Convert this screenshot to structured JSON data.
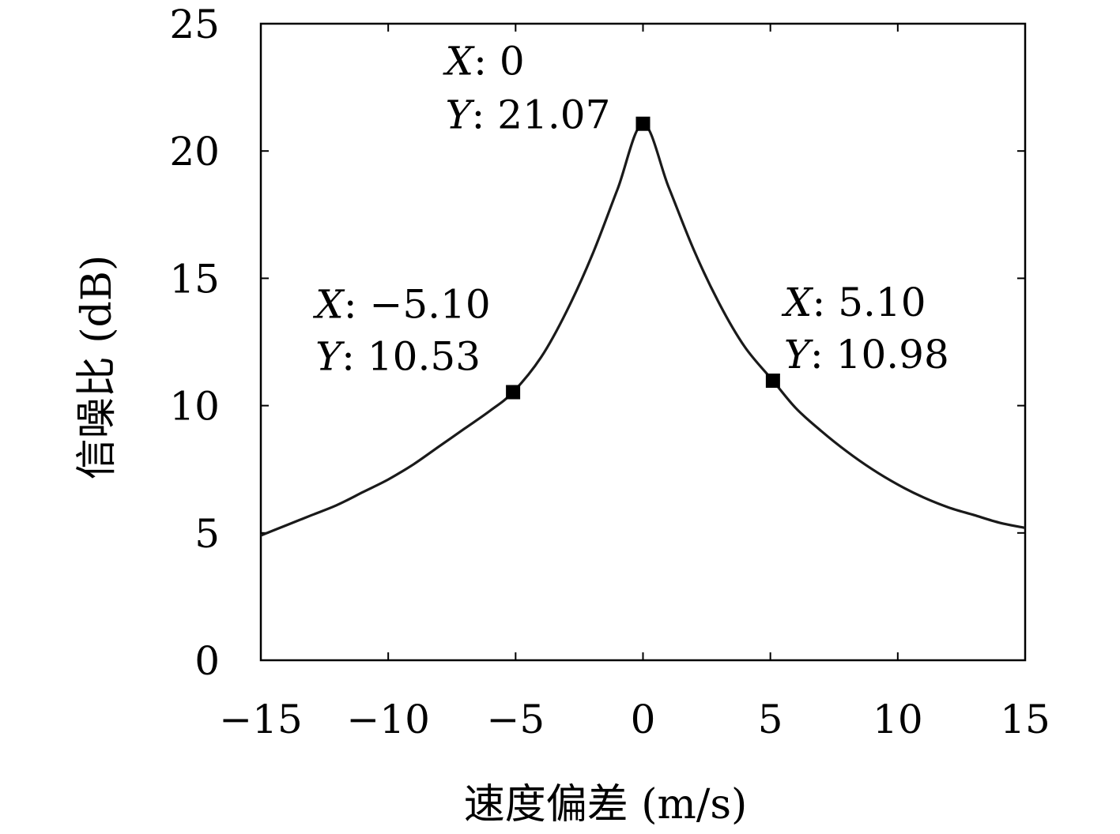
{
  "chart_data": {
    "type": "line",
    "title": "",
    "xlabel": "速度偏差 (m/s)",
    "ylabel": "信噪比 (dB)",
    "xlim": [
      -15,
      15
    ],
    "ylim": [
      0,
      25
    ],
    "xticks": [
      -15,
      -10,
      -5,
      0,
      5,
      10,
      15
    ],
    "yticks": [
      0,
      5,
      10,
      15,
      20,
      25
    ],
    "xtick_labels": [
      "−15",
      "−10",
      "−5",
      "0",
      "5",
      "10",
      "15"
    ],
    "ytick_labels": [
      "0",
      "5",
      "10",
      "15",
      "20",
      "25"
    ],
    "grid": false,
    "series": [
      {
        "color": "#1a1a1a",
        "x": [
          -15,
          -14,
          -13,
          -12,
          -11,
          -10,
          -9,
          -8,
          -7,
          -6,
          -5.1,
          -4,
          -3,
          -2,
          -1,
          0,
          1,
          2,
          3,
          4,
          5.1,
          6,
          7,
          8,
          9,
          10,
          11,
          12,
          13,
          14,
          15
        ],
        "y": [
          4.9,
          5.3,
          5.7,
          6.1,
          6.6,
          7.1,
          7.7,
          8.4,
          9.1,
          9.8,
          10.53,
          11.9,
          13.7,
          15.9,
          18.5,
          21.07,
          18.6,
          16.1,
          14.0,
          12.3,
          10.98,
          9.9,
          9.0,
          8.2,
          7.5,
          6.9,
          6.4,
          6.0,
          5.7,
          5.4,
          5.2
        ]
      }
    ],
    "annotations": [
      {
        "x": 0,
        "y": 21.07,
        "x_text": "0",
        "y_text": "21.07"
      },
      {
        "x": -5.1,
        "y": 10.53,
        "x_text": "−5.10",
        "y_text": "10.53"
      },
      {
        "x": 5.1,
        "y": 10.98,
        "x_text": "5.10",
        "y_text": "10.98"
      }
    ],
    "annotation_x_prefix": "X",
    "annotation_y_prefix": "Y"
  }
}
